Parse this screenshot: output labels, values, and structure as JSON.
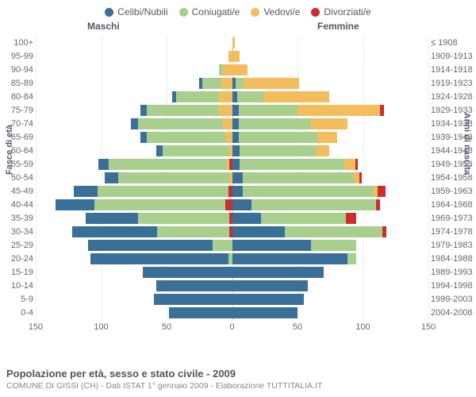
{
  "legend": [
    {
      "label": "Celibi/Nubili",
      "color": "#3a6f9a"
    },
    {
      "label": "Coniugati/e",
      "color": "#a9cf8f"
    },
    {
      "label": "Vedovi/e",
      "color": "#f3bd5d"
    },
    {
      "label": "Divorziati/e",
      "color": "#cc2e2e"
    }
  ],
  "headers": {
    "male": "Maschi",
    "female": "Femmine"
  },
  "axis_titles": {
    "left": "Fasce di età",
    "right": "Anni di nascita"
  },
  "footer": {
    "title": "Popolazione per età, sesso e stato civile - 2009",
    "subtitle": "COMUNE DI GISSI (CH) - Dati ISTAT 1° gennaio 2009 - Elaborazione TUTTITALIA.IT"
  },
  "chart": {
    "type": "population-pyramid",
    "x_max": 150,
    "x_ticks": [
      150,
      100,
      50,
      0,
      50,
      100,
      150
    ],
    "categories": [
      "Celibi/Nubili",
      "Coniugati/e",
      "Vedovi/e",
      "Divorziati/e"
    ],
    "colors": [
      "#3a6f9a",
      "#a9cf8f",
      "#f3bd5d",
      "#cc2e2e"
    ],
    "background_color": "#ffffff",
    "grid_color": "#dddddd",
    "label_fontsize": 11,
    "rows": [
      {
        "age": "100+",
        "birth": "≤ 1908",
        "m": [
          0,
          0,
          0,
          0
        ],
        "f": [
          0,
          0,
          2,
          0
        ]
      },
      {
        "age": "95-99",
        "birth": "1909-1913",
        "m": [
          0,
          0,
          3,
          0
        ],
        "f": [
          0,
          0,
          6,
          0
        ]
      },
      {
        "age": "90-94",
        "birth": "1914-1918",
        "m": [
          0,
          3,
          7,
          0
        ],
        "f": [
          0,
          0,
          12,
          0
        ]
      },
      {
        "age": "85-89",
        "birth": "1919-1923",
        "m": [
          2,
          15,
          8,
          0
        ],
        "f": [
          3,
          6,
          42,
          0
        ]
      },
      {
        "age": "80-84",
        "birth": "1924-1928",
        "m": [
          3,
          33,
          10,
          0
        ],
        "f": [
          4,
          20,
          50,
          0
        ]
      },
      {
        "age": "75-79",
        "birth": "1929-1933",
        "m": [
          5,
          55,
          10,
          0
        ],
        "f": [
          5,
          45,
          63,
          3
        ]
      },
      {
        "age": "70-74",
        "birth": "1934-1938",
        "m": [
          5,
          65,
          7,
          0
        ],
        "f": [
          5,
          55,
          28,
          0
        ]
      },
      {
        "age": "65-69",
        "birth": "1939-1943",
        "m": [
          5,
          60,
          5,
          0
        ],
        "f": [
          5,
          60,
          15,
          0
        ]
      },
      {
        "age": "60-64",
        "birth": "1944-1948",
        "m": [
          5,
          50,
          3,
          0
        ],
        "f": [
          6,
          58,
          10,
          0
        ]
      },
      {
        "age": "55-59",
        "birth": "1949-1953",
        "m": [
          8,
          90,
          2,
          2
        ],
        "f": [
          6,
          80,
          8,
          2
        ]
      },
      {
        "age": "50-54",
        "birth": "1954-1958",
        "m": [
          10,
          85,
          2,
          0
        ],
        "f": [
          8,
          85,
          4,
          2
        ]
      },
      {
        "age": "45-49",
        "birth": "1959-1963",
        "m": [
          18,
          100,
          0,
          3
        ],
        "f": [
          8,
          100,
          3,
          6
        ]
      },
      {
        "age": "40-44",
        "birth": "1964-1968",
        "m": [
          30,
          100,
          0,
          5
        ],
        "f": [
          15,
          95,
          0,
          3
        ]
      },
      {
        "age": "35-39",
        "birth": "1969-1973",
        "m": [
          40,
          70,
          0,
          2
        ],
        "f": [
          22,
          65,
          0,
          8
        ]
      },
      {
        "age": "30-34",
        "birth": "1974-1978",
        "m": [
          65,
          55,
          0,
          2
        ],
        "f": [
          40,
          75,
          0,
          3
        ]
      },
      {
        "age": "25-29",
        "birth": "1979-1983",
        "m": [
          95,
          15,
          0,
          0
        ],
        "f": [
          60,
          35,
          0,
          0
        ]
      },
      {
        "age": "20-24",
        "birth": "1984-1988",
        "m": [
          105,
          3,
          0,
          0
        ],
        "f": [
          88,
          7,
          0,
          0
        ]
      },
      {
        "age": "15-19",
        "birth": "1989-1993",
        "m": [
          68,
          0,
          0,
          0
        ],
        "f": [
          70,
          0,
          0,
          0
        ]
      },
      {
        "age": "10-14",
        "birth": "1994-1998",
        "m": [
          58,
          0,
          0,
          0
        ],
        "f": [
          58,
          0,
          0,
          0
        ]
      },
      {
        "age": "5-9",
        "birth": "1999-2003",
        "m": [
          60,
          0,
          0,
          0
        ],
        "f": [
          55,
          0,
          0,
          0
        ]
      },
      {
        "age": "0-4",
        "birth": "2004-2008",
        "m": [
          48,
          0,
          0,
          0
        ],
        "f": [
          50,
          0,
          0,
          0
        ]
      }
    ]
  }
}
